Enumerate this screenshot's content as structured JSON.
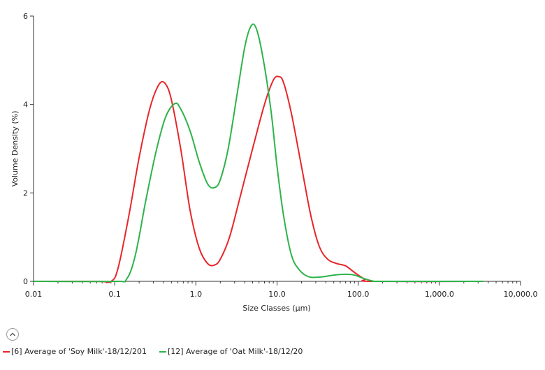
{
  "chart_data": {
    "type": "line",
    "xscale": "log",
    "xlabel": "Size Classes (µm)",
    "ylabel": "Volume Density (%)",
    "xlim": [
      0.01,
      10000
    ],
    "ylim": [
      0,
      6
    ],
    "x_ticks": [
      {
        "value": 0.01,
        "label": "0.01"
      },
      {
        "value": 0.1,
        "label": "0.1"
      },
      {
        "value": 1,
        "label": "1.0"
      },
      {
        "value": 10,
        "label": "10.0"
      },
      {
        "value": 100,
        "label": "100.0"
      },
      {
        "value": 1000,
        "label": "1,000.0"
      },
      {
        "value": 10000,
        "label": "10,000.0"
      }
    ],
    "y_ticks": [
      {
        "value": 0,
        "label": "0"
      },
      {
        "value": 2,
        "label": "2"
      },
      {
        "value": 4,
        "label": "4"
      },
      {
        "value": 6,
        "label": "6"
      }
    ],
    "series": [
      {
        "name": "[6] Average of 'Soy Milk'-18/12/201",
        "color": "#e8262a",
        "points": [
          [
            0.01,
            0
          ],
          [
            0.06,
            0
          ],
          [
            0.09,
            0
          ],
          [
            0.11,
            0.3
          ],
          [
            0.15,
            1.5
          ],
          [
            0.2,
            2.8
          ],
          [
            0.27,
            3.9
          ],
          [
            0.35,
            4.45
          ],
          [
            0.42,
            4.47
          ],
          [
            0.5,
            4.1
          ],
          [
            0.65,
            3.0
          ],
          [
            0.85,
            1.6
          ],
          [
            1.1,
            0.75
          ],
          [
            1.4,
            0.4
          ],
          [
            1.7,
            0.37
          ],
          [
            2.0,
            0.5
          ],
          [
            2.6,
            1.0
          ],
          [
            3.5,
            1.9
          ],
          [
            5,
            3.0
          ],
          [
            7,
            4.0
          ],
          [
            9,
            4.55
          ],
          [
            10.5,
            4.63
          ],
          [
            12,
            4.5
          ],
          [
            15,
            3.8
          ],
          [
            20,
            2.6
          ],
          [
            26,
            1.5
          ],
          [
            33,
            0.8
          ],
          [
            42,
            0.5
          ],
          [
            55,
            0.4
          ],
          [
            70,
            0.35
          ],
          [
            90,
            0.2
          ],
          [
            120,
            0.05
          ],
          [
            150,
            0
          ],
          [
            3500,
            0
          ]
        ]
      },
      {
        "name": "[12] Average of 'Oat Milk'-18/12/20",
        "color": "#2db34a",
        "points": [
          [
            0.01,
            0
          ],
          [
            0.1,
            0
          ],
          [
            0.14,
            0.05
          ],
          [
            0.18,
            0.6
          ],
          [
            0.24,
            1.8
          ],
          [
            0.32,
            2.9
          ],
          [
            0.42,
            3.7
          ],
          [
            0.55,
            4.02
          ],
          [
            0.65,
            3.9
          ],
          [
            0.85,
            3.4
          ],
          [
            1.1,
            2.7
          ],
          [
            1.4,
            2.2
          ],
          [
            1.7,
            2.12
          ],
          [
            2.0,
            2.3
          ],
          [
            2.5,
            3.0
          ],
          [
            3.2,
            4.2
          ],
          [
            4.0,
            5.3
          ],
          [
            4.8,
            5.78
          ],
          [
            5.6,
            5.7
          ],
          [
            6.8,
            5.0
          ],
          [
            8.5,
            3.8
          ],
          [
            10,
            2.6
          ],
          [
            12,
            1.5
          ],
          [
            15,
            0.6
          ],
          [
            19,
            0.25
          ],
          [
            25,
            0.1
          ],
          [
            35,
            0.1
          ],
          [
            50,
            0.14
          ],
          [
            70,
            0.16
          ],
          [
            90,
            0.14
          ],
          [
            115,
            0.07
          ],
          [
            150,
            0.01
          ],
          [
            200,
            0
          ],
          [
            3500,
            0
          ]
        ]
      }
    ]
  }
}
